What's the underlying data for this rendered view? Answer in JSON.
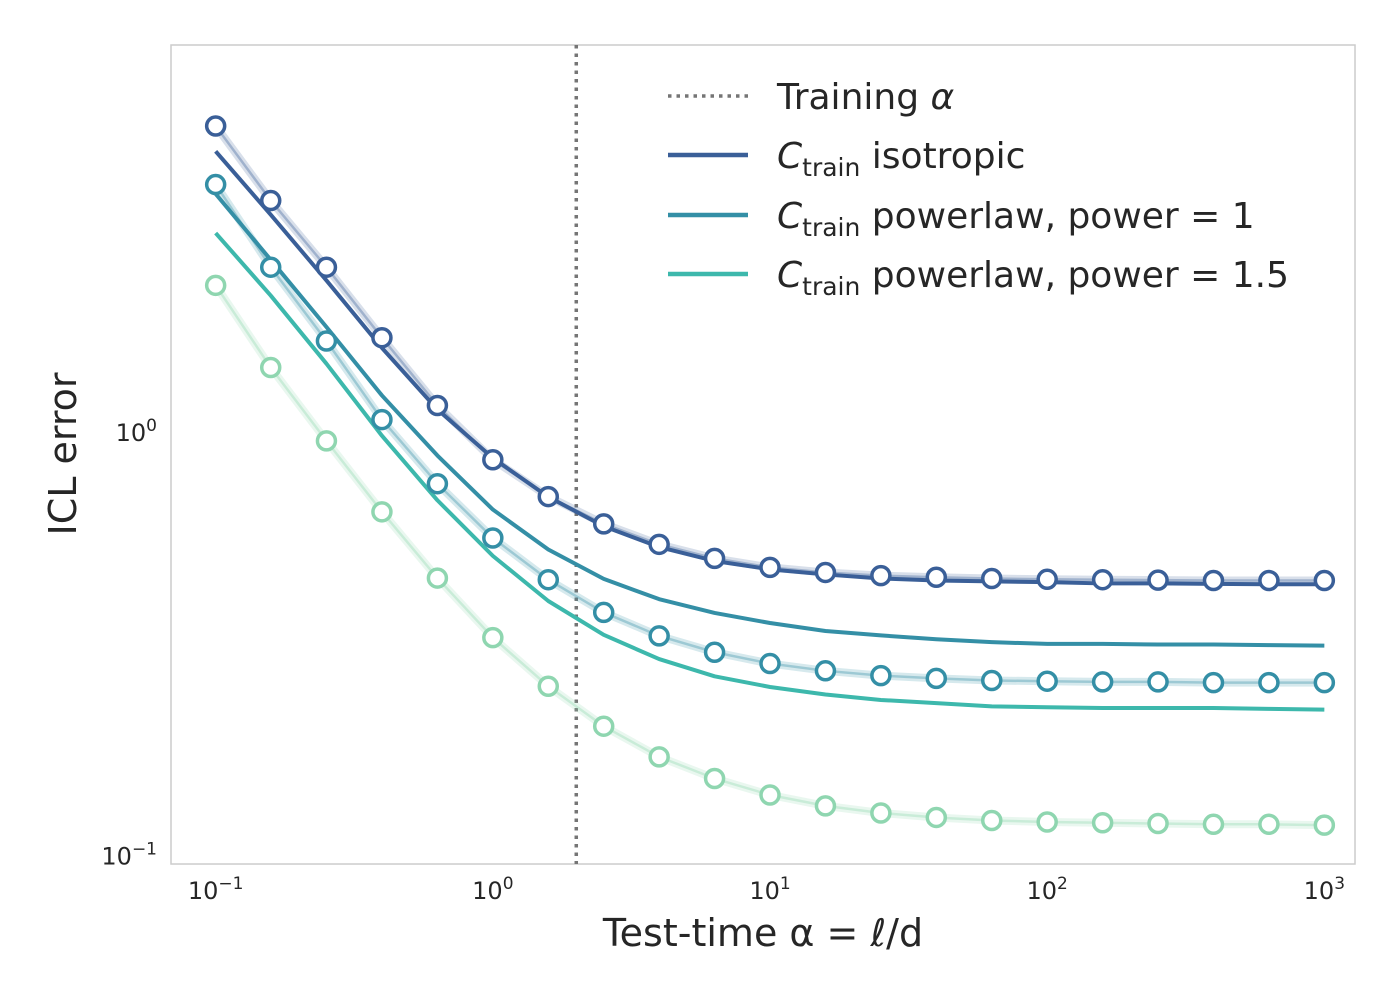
{
  "chart_data": {
    "type": "line",
    "xscale": "log",
    "yscale": "log",
    "xlabel": "Test-time α = ℓ/d",
    "ylabel": "ICL error",
    "xlim": [
      0.069,
      1290
    ],
    "ylim": [
      0.0955,
      8.2
    ],
    "grid": false,
    "legend_position": "top-right",
    "x_ticks": [
      {
        "value": 0.1,
        "base": "10",
        "exp": "−1"
      },
      {
        "value": 1,
        "base": "10",
        "exp": "0"
      },
      {
        "value": 10,
        "base": "10",
        "exp": "1"
      },
      {
        "value": 100,
        "base": "10",
        "exp": "2"
      },
      {
        "value": 1000,
        "base": "10",
        "exp": "3"
      }
    ],
    "y_ticks": [
      {
        "value": 0.1,
        "base": "10",
        "exp": "−1"
      },
      {
        "value": 1,
        "base": "10",
        "exp": "0"
      }
    ],
    "training_alpha": 2.0,
    "legend": [
      {
        "kind": "dotted",
        "color": "#757575",
        "text_main": "Training ",
        "text_italic": "α"
      },
      {
        "kind": "line",
        "color": "#3a5f98",
        "sym": "C",
        "sub": "train",
        "text": " isotropic"
      },
      {
        "kind": "line",
        "color": "#348fa6",
        "sym": "C",
        "sub": "train",
        "text": " powerlaw, power = 1"
      },
      {
        "kind": "line",
        "color": "#3db8ac",
        "sym": "C",
        "sub": "train",
        "text": " powerlaw, power = 1.5"
      }
    ],
    "x": [
      0.1,
      0.158,
      0.251,
      0.398,
      0.631,
      1.0,
      1.585,
      2.512,
      3.981,
      6.31,
      10,
      15.85,
      25.12,
      39.81,
      63.1,
      100,
      158.5,
      251.2,
      398.1,
      631,
      1000
    ],
    "series": [
      {
        "name": "isotropic",
        "line_color": "#3a5f98",
        "marker_color": "#3a5f98",
        "line_values": [
          4.6,
          3.26,
          2.28,
          1.58,
          1.13,
          0.868,
          0.703,
          0.599,
          0.535,
          0.496,
          0.474,
          0.461,
          0.451,
          0.446,
          0.444,
          0.442,
          0.439,
          0.439,
          0.438,
          0.437,
          0.437
        ],
        "marker_values": [
          5.28,
          3.52,
          2.45,
          1.67,
          1.155,
          0.86,
          0.704,
          0.607,
          0.543,
          0.503,
          0.479,
          0.466,
          0.458,
          0.454,
          0.451,
          0.449,
          0.448,
          0.447,
          0.446,
          0.446,
          0.446
        ]
      },
      {
        "name": "power = 1",
        "line_color": "#348fa6",
        "marker_color": "#348fa6",
        "line_values": [
          3.65,
          2.55,
          1.77,
          1.22,
          0.88,
          0.656,
          0.528,
          0.45,
          0.403,
          0.374,
          0.354,
          0.339,
          0.331,
          0.324,
          0.319,
          0.316,
          0.316,
          0.315,
          0.315,
          0.314,
          0.313
        ],
        "marker_values": [
          3.84,
          2.45,
          1.64,
          1.07,
          0.755,
          0.562,
          0.448,
          0.375,
          0.33,
          0.302,
          0.284,
          0.273,
          0.266,
          0.262,
          0.259,
          0.258,
          0.257,
          0.257,
          0.256,
          0.256,
          0.256
        ]
      },
      {
        "name": "power = 1.5",
        "line_color": "#3db8ac",
        "marker_color": "#8fd6b0",
        "line_values": [
          2.95,
          2.1,
          1.45,
          0.98,
          0.69,
          0.51,
          0.399,
          0.332,
          0.291,
          0.265,
          0.25,
          0.24,
          0.233,
          0.229,
          0.225,
          0.224,
          0.223,
          0.223,
          0.223,
          0.222,
          0.221
        ],
        "marker_values": [
          2.22,
          1.42,
          0.953,
          0.648,
          0.452,
          0.327,
          0.251,
          0.202,
          0.171,
          0.152,
          0.139,
          0.131,
          0.126,
          0.123,
          0.121,
          0.12,
          0.1195,
          0.119,
          0.1185,
          0.1185,
          0.118
        ]
      }
    ]
  }
}
